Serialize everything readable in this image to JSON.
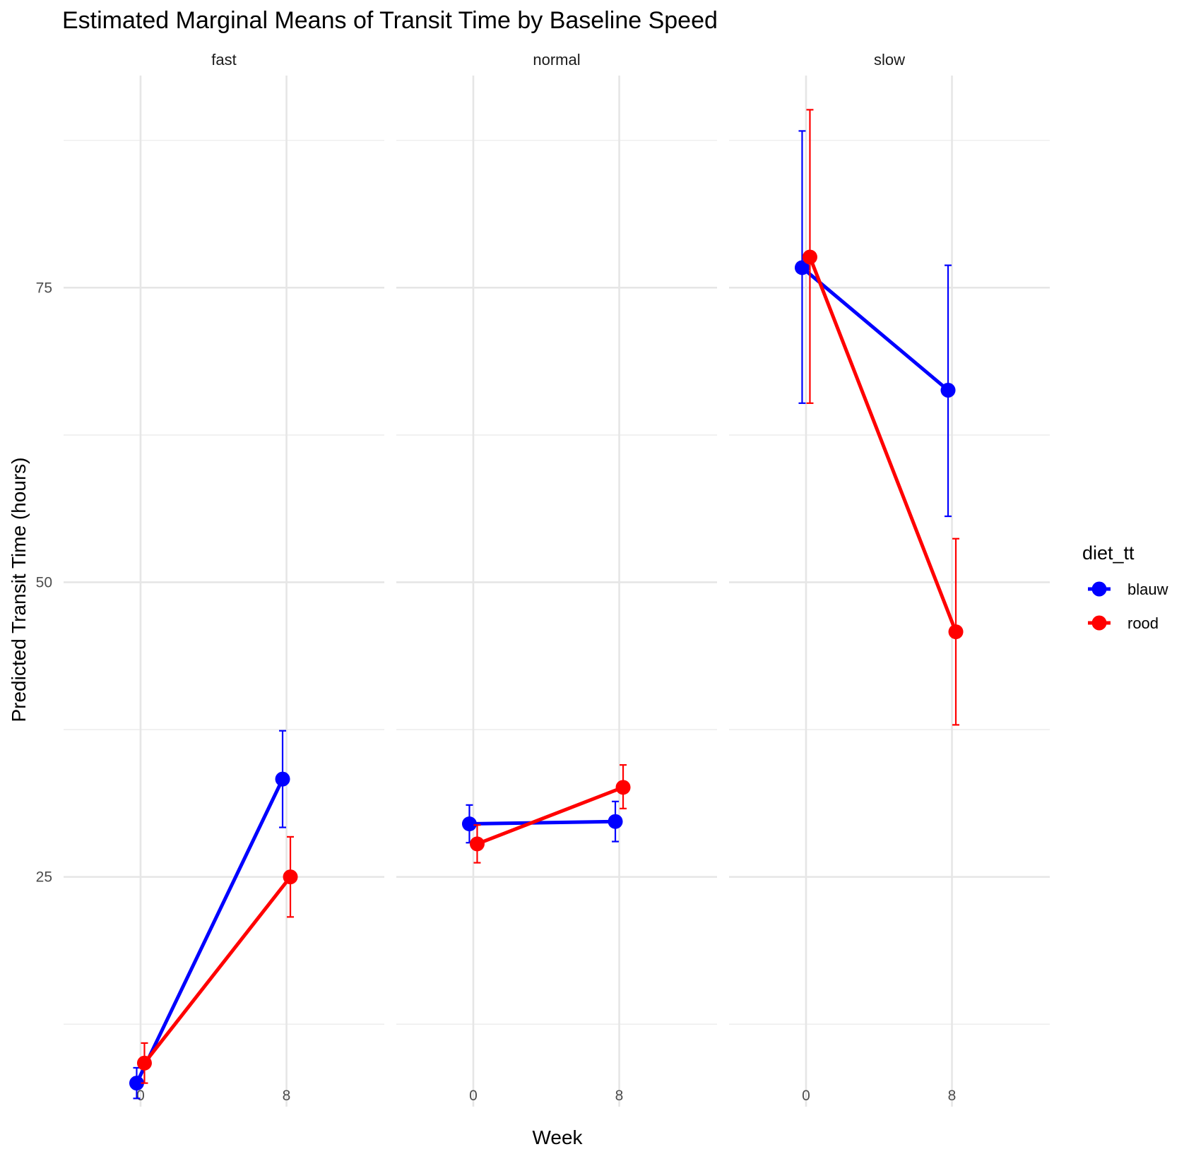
{
  "chart_data": {
    "type": "line",
    "title": "Estimated Marginal Means of Transit Time by Baseline Speed",
    "xlabel": "Week",
    "ylabel": "Predicted Transit Time (hours)",
    "x_ticks": [
      "0",
      "8"
    ],
    "y_ticks": [
      25,
      50,
      75
    ],
    "ylim": [
      5.5,
      93
    ],
    "grid": true,
    "legend": {
      "title": "diet_tt",
      "placement": "right"
    },
    "facets": [
      {
        "label": "fast",
        "series": [
          {
            "name": "blauw",
            "color": "#0000ff",
            "points": [
              {
                "week": 0,
                "mean": 7.5,
                "lower": 6.2,
                "upper": 8.8
              },
              {
                "week": 8,
                "mean": 33.3,
                "lower": 29.2,
                "upper": 37.4
              }
            ]
          },
          {
            "name": "rood",
            "color": "#ff0000",
            "points": [
              {
                "week": 0,
                "mean": 9.2,
                "lower": 7.5,
                "upper": 10.9
              },
              {
                "week": 8,
                "mean": 25.0,
                "lower": 21.6,
                "upper": 28.4
              }
            ]
          }
        ]
      },
      {
        "label": "normal",
        "series": [
          {
            "name": "blauw",
            "color": "#0000ff",
            "points": [
              {
                "week": 0,
                "mean": 29.5,
                "lower": 27.9,
                "upper": 31.1
              },
              {
                "week": 8,
                "mean": 29.7,
                "lower": 28.0,
                "upper": 31.4
              }
            ]
          },
          {
            "name": "rood",
            "color": "#ff0000",
            "points": [
              {
                "week": 0,
                "mean": 27.8,
                "lower": 26.2,
                "upper": 29.4
              },
              {
                "week": 8,
                "mean": 32.6,
                "lower": 30.8,
                "upper": 34.5
              }
            ]
          }
        ]
      },
      {
        "label": "slow",
        "series": [
          {
            "name": "blauw",
            "color": "#0000ff",
            "points": [
              {
                "week": 0,
                "mean": 76.7,
                "lower": 65.2,
                "upper": 88.3
              },
              {
                "week": 8,
                "mean": 66.3,
                "lower": 55.6,
                "upper": 76.9
              }
            ]
          },
          {
            "name": "rood",
            "color": "#ff0000",
            "points": [
              {
                "week": 0,
                "mean": 77.6,
                "lower": 65.2,
                "upper": 90.1
              },
              {
                "week": 8,
                "mean": 45.8,
                "lower": 37.9,
                "upper": 53.7
              }
            ]
          }
        ]
      }
    ]
  }
}
